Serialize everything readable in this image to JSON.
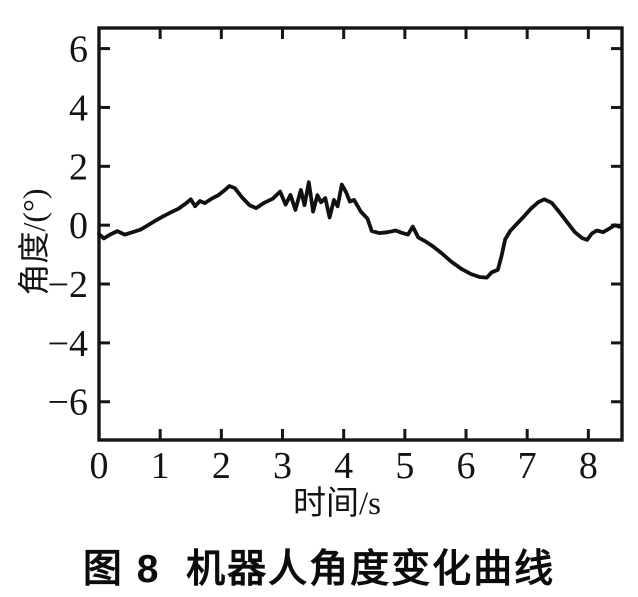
{
  "figure": {
    "caption": "图 8  机器人角度变化曲线"
  },
  "colors": {
    "background": "#ffffff",
    "axis": "#161616",
    "line": "#111111",
    "text": "#141414"
  },
  "chart_data": {
    "type": "line",
    "title": "",
    "xlabel": "时间/s",
    "ylabel": "角度/(°)",
    "xlim": [
      0,
      8.55
    ],
    "ylim": [
      -7.3,
      6.7
    ],
    "x_ticks": [
      0,
      1,
      2,
      3,
      4,
      5,
      6,
      7,
      8
    ],
    "y_ticks": [
      -6,
      -4,
      -2,
      0,
      2,
      4,
      6
    ],
    "grid": false,
    "legend_position": "none",
    "series": [
      {
        "name": "角度",
        "x": [
          0.0,
          0.08,
          0.18,
          0.3,
          0.42,
          0.55,
          0.68,
          0.8,
          0.92,
          1.05,
          1.18,
          1.3,
          1.42,
          1.5,
          1.57,
          1.65,
          1.73,
          1.84,
          1.95,
          2.05,
          2.13,
          2.22,
          2.34,
          2.46,
          2.57,
          2.7,
          2.84,
          2.96,
          3.05,
          3.13,
          3.21,
          3.3,
          3.36,
          3.43,
          3.5,
          3.57,
          3.63,
          3.7,
          3.77,
          3.84,
          3.9,
          3.97,
          4.04,
          4.1,
          4.17,
          4.28,
          4.39,
          4.46,
          4.58,
          4.72,
          4.85,
          4.95,
          5.05,
          5.13,
          5.22,
          5.34,
          5.46,
          5.6,
          5.76,
          5.92,
          6.08,
          6.22,
          6.34,
          6.42,
          6.52,
          6.58,
          6.64,
          6.72,
          6.82,
          6.94,
          7.06,
          7.18,
          7.28,
          7.4,
          7.52,
          7.66,
          7.78,
          7.9,
          7.98,
          8.06,
          8.14,
          8.24,
          8.34,
          8.43,
          8.52
        ],
        "y": [
          -0.3,
          -0.45,
          -0.32,
          -0.2,
          -0.32,
          -0.24,
          -0.15,
          0.0,
          0.15,
          0.3,
          0.44,
          0.56,
          0.74,
          0.88,
          0.64,
          0.82,
          0.75,
          0.9,
          1.02,
          1.18,
          1.33,
          1.26,
          0.94,
          0.68,
          0.58,
          0.76,
          0.9,
          1.14,
          0.7,
          1.03,
          0.52,
          1.2,
          0.68,
          1.46,
          0.46,
          1.02,
          0.78,
          0.92,
          0.26,
          0.86,
          0.64,
          1.38,
          1.12,
          0.8,
          0.86,
          0.46,
          0.22,
          -0.2,
          -0.27,
          -0.24,
          -0.18,
          -0.26,
          -0.32,
          -0.05,
          -0.42,
          -0.55,
          -0.72,
          -0.95,
          -1.24,
          -1.48,
          -1.66,
          -1.76,
          -1.78,
          -1.6,
          -1.52,
          -1.05,
          -0.48,
          -0.2,
          0.02,
          0.28,
          0.56,
          0.78,
          0.88,
          0.76,
          0.46,
          0.08,
          -0.24,
          -0.44,
          -0.5,
          -0.28,
          -0.18,
          -0.24,
          -0.12,
          0.0,
          -0.06
        ]
      }
    ]
  }
}
